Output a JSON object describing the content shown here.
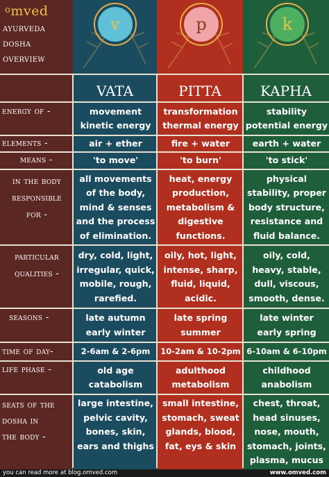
{
  "brand": {
    "logo_small": "o",
    "logo_main": "mved"
  },
  "header": {
    "title_lines": [
      "ayurveda",
      "dosha",
      "overview"
    ]
  },
  "emblems": {
    "vata": "v",
    "pitta": "p",
    "kapha": "k"
  },
  "columns": {
    "vata": "vata",
    "pitta": "pitta",
    "kapha": "kapha"
  },
  "rows": {
    "energy": {
      "label": [
        "energy of -"
      ],
      "vata": [
        "movement",
        "kinetic energy"
      ],
      "pitta": [
        "transformation",
        "thermal energy"
      ],
      "kapha": [
        "stability",
        "potential energy"
      ]
    },
    "elements": {
      "label": [
        "elements -"
      ],
      "vata": [
        "air + ether"
      ],
      "pitta": [
        "fire + water"
      ],
      "kapha": [
        "earth + water"
      ]
    },
    "means": {
      "label": [
        "means -"
      ],
      "vata": [
        "'to move'"
      ],
      "pitta": [
        "'to burn'"
      ],
      "kapha": [
        "'to stick'"
      ]
    },
    "responsible": {
      "label": [
        "in the body",
        "responsible",
        "for -"
      ],
      "vata": [
        "all movements",
        "of the body,",
        "mind & senses",
        "and the process",
        "of elimination."
      ],
      "pitta": [
        "heat, energy",
        "production,",
        "metabolism &",
        "digestive",
        "functions."
      ],
      "kapha": [
        "physical",
        "stability, proper",
        "body structure,",
        "resistance and",
        "fluid balance."
      ]
    },
    "qualities": {
      "label": [
        "particular",
        "qualities -"
      ],
      "vata": [
        "dry, cold, light,",
        "irregular, quick,",
        "mobile, rough,",
        "rarefied."
      ],
      "pitta": [
        "oily, hot, light,",
        "intense, sharp,",
        "fluid, liquid,",
        "acidic."
      ],
      "kapha": [
        "oily, cold,",
        "heavy, stable,",
        "dull, viscous,",
        "smooth, dense."
      ]
    },
    "seasons": {
      "label": [
        "seasons -"
      ],
      "vata": [
        "late autumn",
        "early winter"
      ],
      "pitta": [
        "late spring",
        "summer"
      ],
      "kapha": [
        "late winter",
        "early spring"
      ]
    },
    "time": {
      "label": [
        "time of day-"
      ],
      "vata": [
        "2-6am & 2-6pm"
      ],
      "pitta": [
        "10-2am & 10-2pm"
      ],
      "kapha": [
        "6-10am & 6-10pm"
      ]
    },
    "life": {
      "label": [
        "life phase -"
      ],
      "vata": [
        "old age",
        "catabolism"
      ],
      "pitta": [
        "adulthood",
        "metabolism"
      ],
      "kapha": [
        "childhood",
        "anabolism"
      ]
    },
    "seats": {
      "label": [
        "seats of the",
        "dosha in",
        "the body -"
      ],
      "vata": [
        "large intestine,",
        "pelvic cavity,",
        "bones, skin,",
        "ears and thighs"
      ],
      "pitta": [
        "small intestine,",
        "stomach, sweat",
        "glands, blood,",
        "fat, eys & skin"
      ],
      "kapha": [
        "chest, throat,",
        "head sinuses,",
        "nose, mouth,",
        "stomach, joints,",
        "plasma, mucus"
      ]
    }
  },
  "footer": {
    "left": "you can read more at blog.omved.com",
    "right": "www.omved.com"
  },
  "colors": {
    "vata": "#1b4b5f",
    "pitta": "#b02f1f",
    "kapha": "#1f5e3a",
    "label": "#5b2722",
    "gold": "#e7b04a"
  }
}
